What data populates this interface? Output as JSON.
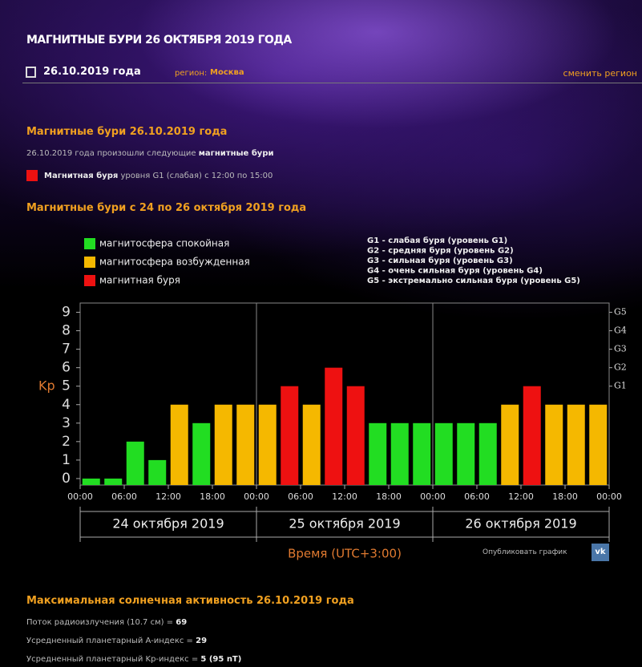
{
  "header": {
    "title": "МАГНИТНЫЕ БУРИ 26 ОКТЯБРЯ 2019 ГОДА",
    "date": "26.10.2019 года",
    "region_label": "регион:",
    "region": "Москва",
    "change_region": "сменить регион"
  },
  "section1": {
    "title": "Магнитные бури 26.10.2019 года",
    "text": "26.10.2019 года произошли следующие",
    "text_bold": "магнитные бури",
    "item_bold": "Магнитная буря",
    "item_text": "уровня G1 (слабая) с 12:00 по 15:00"
  },
  "section2": {
    "title": "Магнитные бури с 24 по 26 октября 2019 года"
  },
  "chart_data": {
    "type": "bar",
    "legend": [
      {
        "name": "магнитосфера спокойная",
        "color": "#22dd22"
      },
      {
        "name": "магнитосфера возбужденная",
        "color": "#f5b800"
      },
      {
        "name": "магнитная буря",
        "color": "#ee1111"
      }
    ],
    "notes": [
      "G1 - слабая буря (уровень G1)",
      "G2 - средняя буря (уровень G2)",
      "G3 - сильная буря (уровень G3)",
      "G4 - очень сильная буря (уровень G4)",
      "G5 - экстремально сильная буря (уровень G5)"
    ],
    "y_label": "Kp",
    "x_label": "Время (UTC+3:00)",
    "x": [
      0,
      3,
      6,
      9,
      12,
      15,
      18,
      21,
      24,
      27,
      30,
      33,
      36,
      39,
      42,
      45,
      48,
      51,
      54,
      57,
      60,
      63,
      66,
      69
    ],
    "values": [
      0,
      0,
      2,
      1,
      4,
      3,
      4,
      4,
      4,
      5,
      4,
      6,
      5,
      3,
      3,
      3,
      3,
      3,
      3,
      4,
      5,
      4,
      4,
      4
    ],
    "colors": [
      "#22dd22",
      "#22dd22",
      "#22dd22",
      "#22dd22",
      "#f5b800",
      "#22dd22",
      "#f5b800",
      "#f5b800",
      "#f5b800",
      "#ee1111",
      "#f5b800",
      "#ee1111",
      "#ee1111",
      "#22dd22",
      "#22dd22",
      "#22dd22",
      "#22dd22",
      "#22dd22",
      "#22dd22",
      "#f5b800",
      "#ee1111",
      "#f5b800",
      "#f5b800",
      "#f5b800"
    ],
    "xlim": [
      0,
      72
    ],
    "xticks": [
      {
        "value": 0,
        "label": "00:00"
      },
      {
        "value": 6,
        "label": "06:00"
      },
      {
        "value": 12,
        "label": "12:00"
      },
      {
        "value": 18,
        "label": "18:00"
      },
      {
        "value": 24,
        "label": "00:00"
      },
      {
        "value": 30,
        "label": "06:00"
      },
      {
        "value": 36,
        "label": "12:00"
      },
      {
        "value": 42,
        "label": "18:00"
      },
      {
        "value": 48,
        "label": "00:00"
      },
      {
        "value": 54,
        "label": "06:00"
      },
      {
        "value": 60,
        "label": "12:00"
      },
      {
        "value": 66,
        "label": "18:00"
      },
      {
        "value": 72,
        "label": "00:00"
      }
    ],
    "date_groups": [
      "24 октября 2019",
      "25 октября 2019",
      "26 октября 2019"
    ],
    "ylim": [
      -0.35,
      9.5
    ],
    "yticks": [
      0,
      1,
      2,
      3,
      4,
      5,
      6,
      7,
      8,
      9
    ],
    "y2lim": [
      -0.35,
      9.5
    ],
    "y2ticks": [
      {
        "value": 5,
        "label": "G1"
      },
      {
        "value": 6,
        "label": "G2"
      },
      {
        "value": 7,
        "label": "G3"
      },
      {
        "value": 8,
        "label": "G4"
      },
      {
        "value": 9,
        "label": "G5"
      }
    ]
  },
  "publish": {
    "text": "Опубликовать график",
    "icon": "vk"
  },
  "section3": {
    "title": "Максимальная солнечная активность 26.10.2019 года",
    "stats": [
      {
        "label": "Поток радиоизлучения (10.7 см) =",
        "value": 69
      },
      {
        "label": "Усредненный планетарный A-индекс =",
        "value": 29
      },
      {
        "label": "Усредненный планетарный Kp-индекс =",
        "value": "5 (95 nT)"
      }
    ]
  }
}
